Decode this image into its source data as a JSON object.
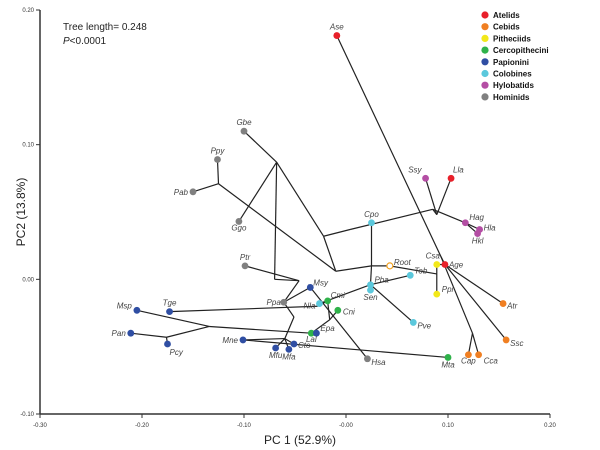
{
  "chart_data": {
    "type": "scatter",
    "title": "",
    "xlabel": "PC 1 (52.9%)",
    "ylabel": "PC2 (13.8%)",
    "xlim": [
      -0.3,
      0.2
    ],
    "ylim": [
      -0.1,
      0.2
    ],
    "x_ticks": [
      -0.3,
      -0.2,
      -0.1,
      0.0,
      0.1,
      0.2
    ],
    "x_tick_labels": [
      "-0.30",
      "-0.20",
      "-0.10",
      "-0.00",
      "0.10",
      "0.20"
    ],
    "y_ticks": [
      -0.1,
      0.0,
      0.1,
      0.2
    ],
    "y_tick_labels": [
      "-0.10",
      "0.00",
      "0.10",
      "0.20"
    ],
    "grid": false,
    "annotations": {
      "tree_length": "Tree length= 0.248",
      "p_prefix": "P",
      "p_value": "<0.0001"
    },
    "legend": {
      "placement": "top-right",
      "entries": [
        {
          "name": "Atelids",
          "color": "#e8202a"
        },
        {
          "name": "Cebids",
          "color": "#f07f22"
        },
        {
          "name": "Pitheciids",
          "color": "#f2e81a"
        },
        {
          "name": "Cercopithecini",
          "color": "#2fb24a"
        },
        {
          "name": "Papionini",
          "color": "#2f4ea3"
        },
        {
          "name": "Colobines",
          "color": "#5bc8dc"
        },
        {
          "name": "Hylobatids",
          "color": "#b44ea4"
        },
        {
          "name": "Hominids",
          "color": "#808080"
        }
      ]
    },
    "points": [
      {
        "label": "Ase",
        "group": "Atelids",
        "x": -0.009,
        "y": 0.181
      },
      {
        "label": "Lla",
        "group": "Atelids",
        "x": 0.103,
        "y": 0.075
      },
      {
        "label": "Age",
        "group": "Atelids",
        "x": 0.097,
        "y": 0.011
      },
      {
        "label": "Atr",
        "group": "Cebids",
        "x": 0.154,
        "y": -0.018
      },
      {
        "label": "Ssc",
        "group": "Cebids",
        "x": 0.157,
        "y": -0.045
      },
      {
        "label": "Cap",
        "group": "Cebids",
        "x": 0.12,
        "y": -0.056
      },
      {
        "label": "Cca",
        "group": "Cebids",
        "x": 0.13,
        "y": -0.056
      },
      {
        "label": "Csa",
        "group": "Pitheciids",
        "x": 0.089,
        "y": 0.011
      },
      {
        "label": "Ppi",
        "group": "Pitheciids",
        "x": 0.089,
        "y": -0.011
      },
      {
        "label": "Mta",
        "group": "Cercopithecini",
        "x": 0.1,
        "y": -0.058
      },
      {
        "label": "Cni",
        "group": "Cercopithecini",
        "x": -0.008,
        "y": -0.023
      },
      {
        "label": "Cmi",
        "group": "Cercopithecini",
        "x": -0.018,
        "y": -0.016
      },
      {
        "label": "Lal",
        "group": "Cercopithecini",
        "x": -0.034,
        "y": -0.04
      },
      {
        "label": "Msp",
        "group": "Papionini",
        "x": -0.205,
        "y": -0.023
      },
      {
        "label": "Tge",
        "group": "Papionini",
        "x": -0.173,
        "y": -0.024
      },
      {
        "label": "Pan",
        "group": "Papionini",
        "x": -0.211,
        "y": -0.04
      },
      {
        "label": "Pcy",
        "group": "Papionini",
        "x": -0.175,
        "y": -0.048
      },
      {
        "label": "Mne",
        "group": "Papionini",
        "x": -0.101,
        "y": -0.045
      },
      {
        "label": "Mfu",
        "group": "Papionini",
        "x": -0.069,
        "y": -0.051
      },
      {
        "label": "Mfa",
        "group": "Papionini",
        "x": -0.056,
        "y": -0.052
      },
      {
        "label": "Cto",
        "group": "Papionini",
        "x": -0.051,
        "y": -0.048
      },
      {
        "label": "Epa",
        "group": "Papionini",
        "x": -0.029,
        "y": -0.04
      },
      {
        "label": "Msy",
        "group": "Papionini",
        "x": -0.035,
        "y": -0.006
      },
      {
        "label": "Cpo",
        "group": "Colobines",
        "x": 0.025,
        "y": 0.042
      },
      {
        "label": "Tob",
        "group": "Colobines",
        "x": 0.063,
        "y": 0.003
      },
      {
        "label": "Pba",
        "group": "Colobines",
        "x": 0.024,
        "y": -0.004
      },
      {
        "label": "Sen",
        "group": "Colobines",
        "x": 0.024,
        "y": -0.008
      },
      {
        "label": "Nla",
        "group": "Colobines",
        "x": -0.026,
        "y": -0.018
      },
      {
        "label": "Pve",
        "group": "Colobines",
        "x": 0.066,
        "y": -0.032
      },
      {
        "label": "Ssy",
        "group": "Hylobatids",
        "x": 0.078,
        "y": 0.075
      },
      {
        "label": "Hag",
        "group": "Hylobatids",
        "x": 0.117,
        "y": 0.042
      },
      {
        "label": "Hla",
        "group": "Hylobatids",
        "x": 0.131,
        "y": 0.037
      },
      {
        "label": "Hkl",
        "group": "Hylobatids",
        "x": 0.129,
        "y": 0.034
      },
      {
        "label": "Gbe",
        "group": "Hominids",
        "x": -0.1,
        "y": 0.11
      },
      {
        "label": "Ppy",
        "group": "Hominids",
        "x": -0.126,
        "y": 0.089
      },
      {
        "label": "Pab",
        "group": "Hominids",
        "x": -0.15,
        "y": 0.065
      },
      {
        "label": "Ggo",
        "group": "Hominids",
        "x": -0.105,
        "y": 0.043
      },
      {
        "label": "Ptr",
        "group": "Hominids",
        "x": -0.099,
        "y": 0.01
      },
      {
        "label": "Ppa",
        "group": "Hominids",
        "x": -0.061,
        "y": -0.017
      },
      {
        "label": "Hsa",
        "group": "Hominids",
        "x": 0.021,
        "y": -0.059
      }
    ],
    "root": {
      "label": "Root",
      "x": 0.043,
      "y": 0.01
    }
  }
}
